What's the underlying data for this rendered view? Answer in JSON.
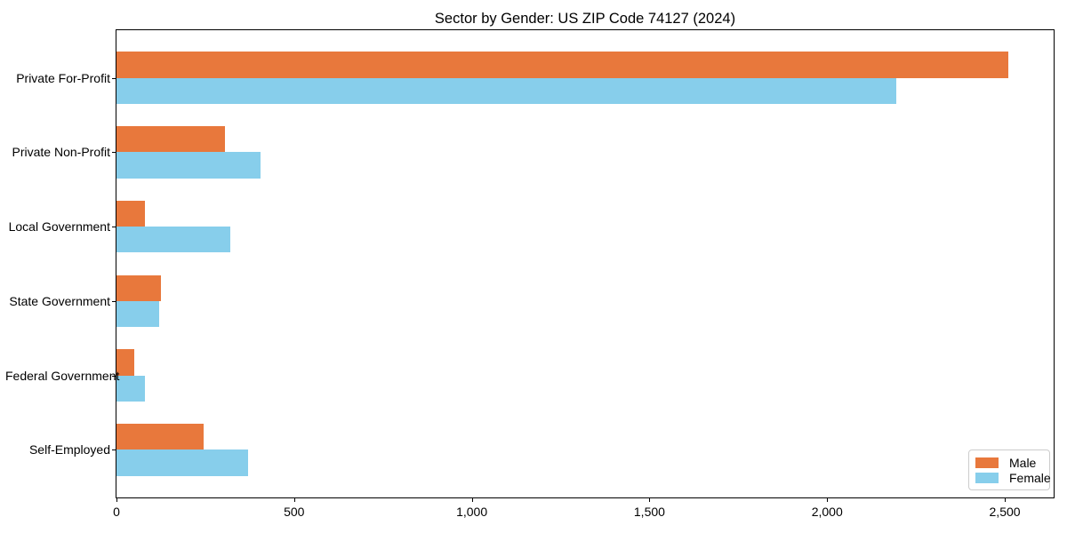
{
  "chart_data": {
    "type": "bar",
    "orientation": "horizontal",
    "title": "Sector by Gender: US ZIP Code 74127 (2024)",
    "categories": [
      "Private For-Profit",
      "Private Non-Profit",
      "Local Government",
      "State Government",
      "Federal Government",
      "Self-Employed"
    ],
    "series": [
      {
        "name": "Male",
        "color": "#E8783C",
        "values": [
          2510,
          305,
          80,
          125,
          50,
          245
        ]
      },
      {
        "name": "Female",
        "color": "#87CEEB",
        "values": [
          2195,
          405,
          320,
          120,
          80,
          370
        ]
      }
    ],
    "xlabel": "",
    "ylabel": "",
    "xlim": [
      0,
      2637.5
    ],
    "x_ticks": [
      0,
      500,
      1000,
      1500,
      2000,
      2500
    ],
    "x_tick_labels": [
      "0",
      "500",
      "1,000",
      "1,500",
      "2,000",
      "2,500"
    ],
    "grid": false,
    "legend": {
      "position": "lower right",
      "entries": [
        "Male",
        "Female"
      ]
    }
  }
}
